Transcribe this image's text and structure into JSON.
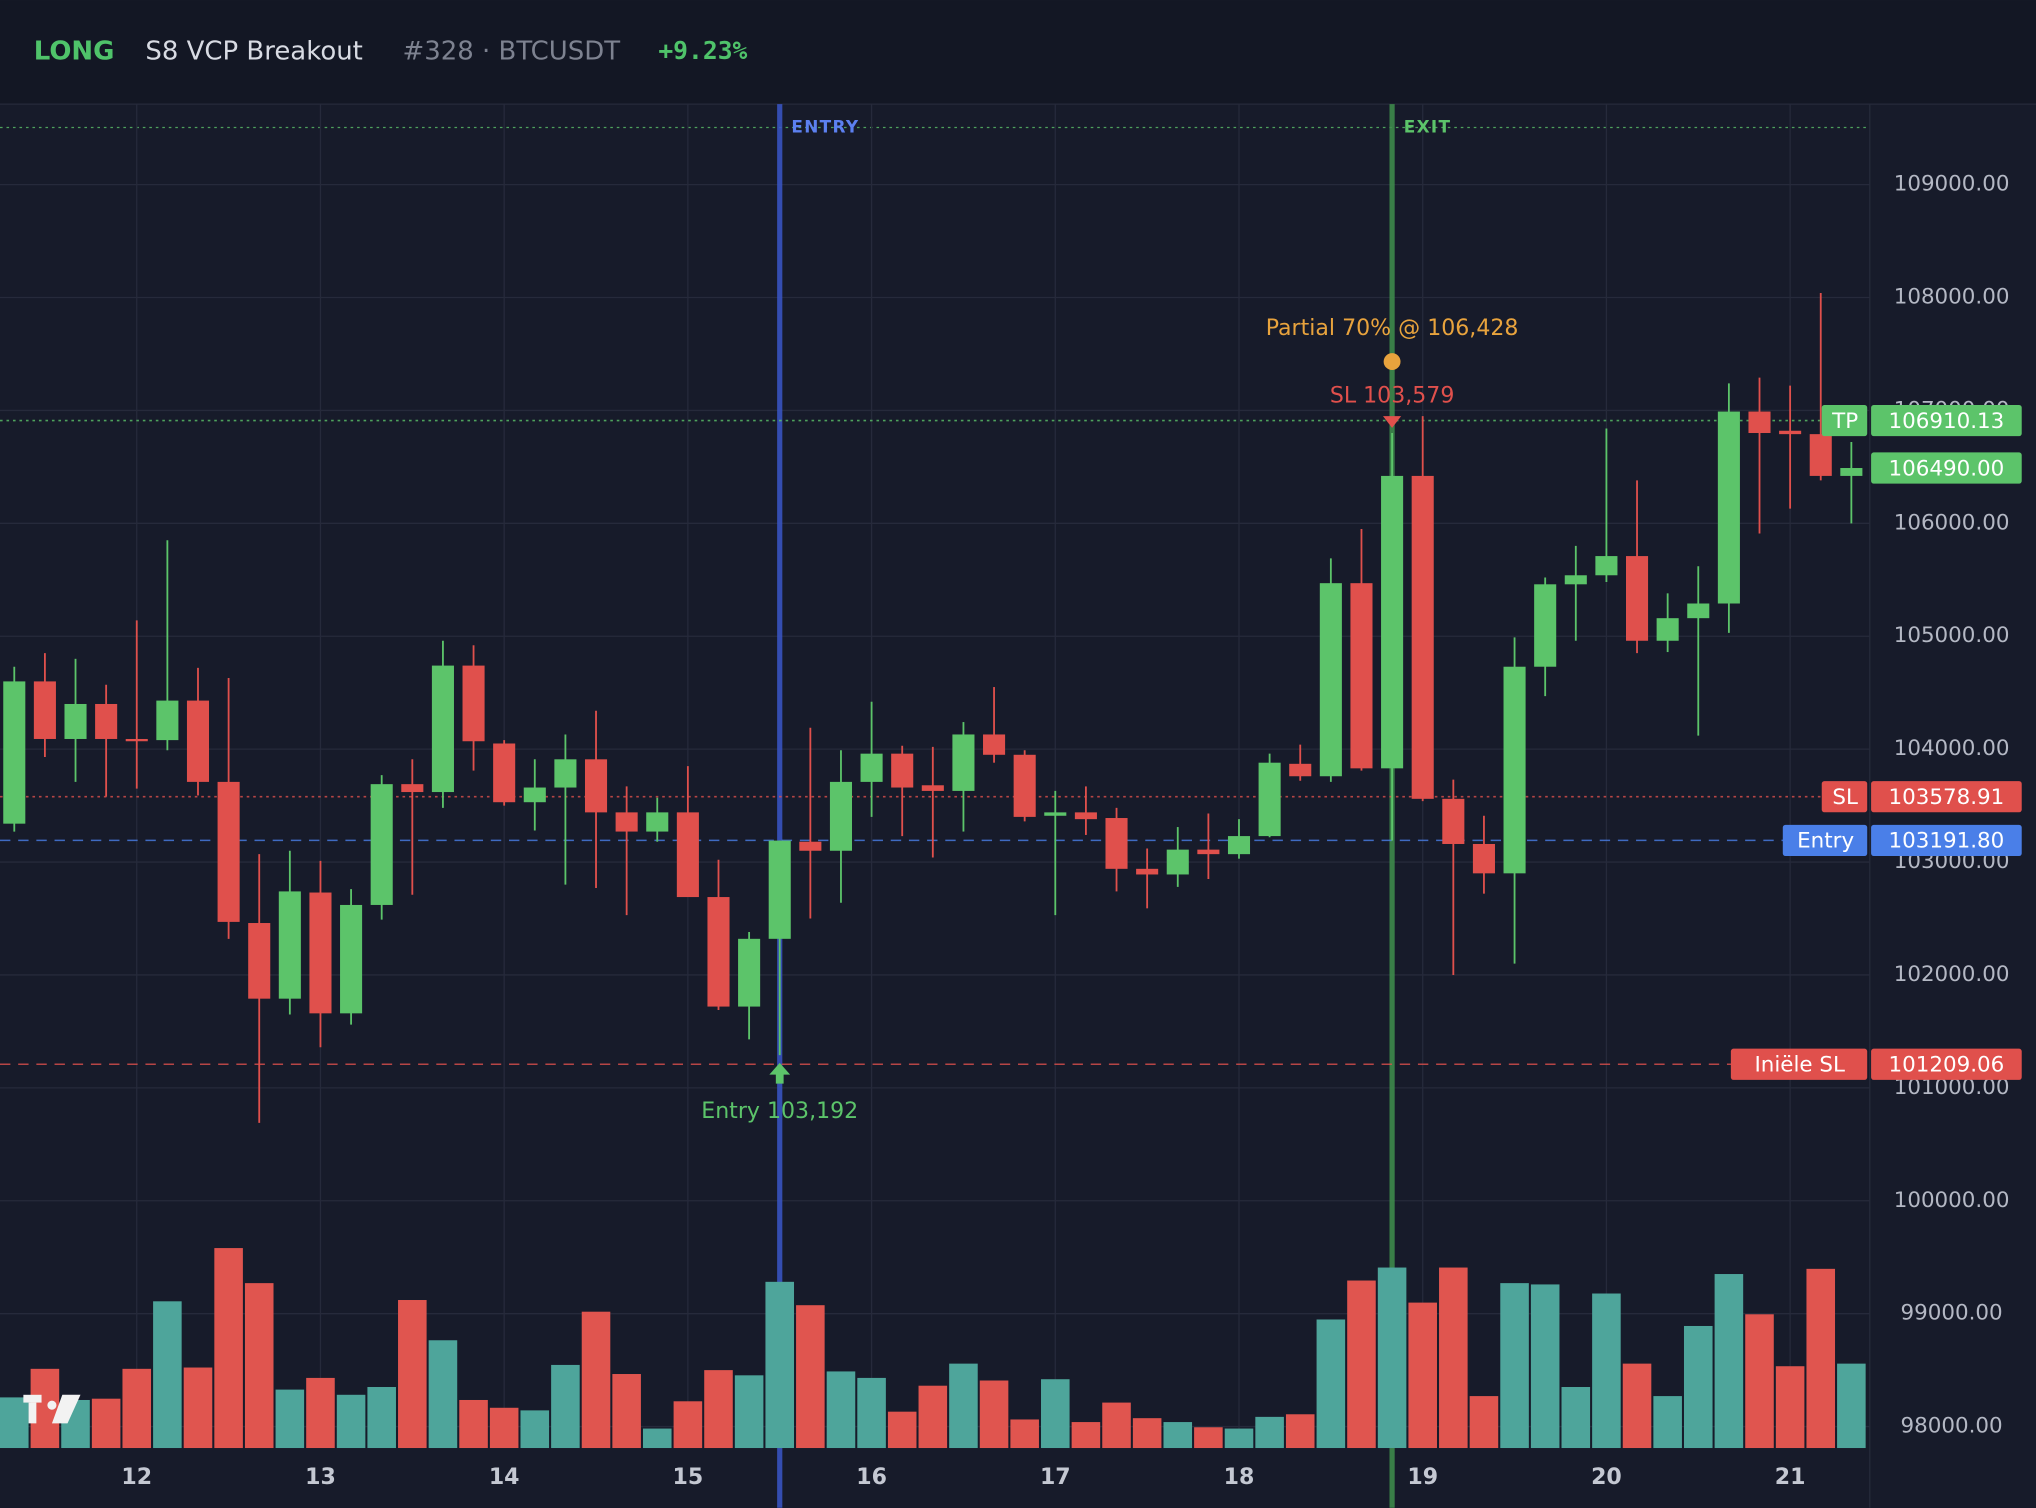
{
  "header": {
    "side": "LONG",
    "strategy": "S8 VCP Breakout",
    "symbol": "#328 · BTCUSDT",
    "pnl": "+9.23%"
  },
  "chart_data": {
    "type": "candlestick",
    "categories": [
      null,
      null,
      null,
      null,
      "12",
      null,
      null,
      null,
      null,
      null,
      "13",
      null,
      null,
      null,
      null,
      null,
      "14",
      null,
      null,
      null,
      null,
      null,
      "15",
      null,
      null,
      null,
      null,
      null,
      "16",
      null,
      null,
      null,
      null,
      null,
      "17",
      null,
      null,
      null,
      null,
      null,
      "18",
      null,
      null,
      null,
      null,
      null,
      "19",
      null,
      null,
      null,
      null,
      null,
      "20",
      null,
      null,
      null,
      null,
      null,
      "21",
      null,
      null
    ],
    "open": [
      103340,
      104600,
      104090,
      104400,
      104090,
      104080,
      104430,
      103710,
      102460,
      101790,
      102730,
      101660,
      102620,
      103690,
      103620,
      104740,
      104050,
      103530,
      103660,
      103910,
      103440,
      103270,
      103440,
      102690,
      101720,
      102320,
      103180,
      103100,
      103710,
      103960,
      103680,
      103630,
      104130,
      103950,
      103410,
      103440,
      103390,
      102940,
      102890,
      103110,
      103070,
      103230,
      103870,
      103760,
      105470,
      103830,
      106420,
      103560,
      103160,
      102900,
      104730,
      105460,
      105540,
      105710,
      104960,
      105160,
      105290,
      106990,
      106820,
      106790,
      106420
    ],
    "high": [
      104730,
      104850,
      104800,
      104570,
      105140,
      105850,
      104720,
      104630,
      103070,
      103100,
      103010,
      102760,
      103770,
      103910,
      104960,
      104920,
      104080,
      103910,
      104130,
      104340,
      103670,
      103570,
      103850,
      103020,
      102380,
      103190,
      104190,
      103990,
      104420,
      104030,
      104020,
      104240,
      104550,
      103990,
      103630,
      103670,
      103480,
      103120,
      103310,
      103430,
      103380,
      103960,
      104040,
      105690,
      105950,
      106800,
      106950,
      103730,
      103410,
      104990,
      105520,
      105800,
      106840,
      106380,
      105380,
      105620,
      107240,
      107290,
      107220,
      108040,
      106720
    ],
    "low": [
      103270,
      103930,
      103710,
      103580,
      103650,
      103990,
      103590,
      102320,
      100690,
      101650,
      101360,
      101560,
      102490,
      102710,
      103480,
      103810,
      103500,
      103280,
      102800,
      102770,
      102530,
      103180,
      102690,
      101690,
      101430,
      101290,
      102500,
      102640,
      103400,
      103230,
      103040,
      103270,
      103880,
      103360,
      102530,
      103240,
      102740,
      102590,
      102780,
      102850,
      103030,
      103220,
      103720,
      103710,
      103810,
      103190,
      103540,
      102000,
      102720,
      102100,
      104470,
      104960,
      105480,
      104850,
      104860,
      104120,
      105030,
      105910,
      106130,
      106380,
      106000
    ],
    "close": [
      104600,
      104090,
      104400,
      104090,
      104070,
      104430,
      103710,
      102470,
      101790,
      102740,
      101660,
      102620,
      103690,
      103620,
      104740,
      104070,
      103530,
      103660,
      103910,
      103440,
      103270,
      103440,
      102690,
      101720,
      102320,
      103190,
      103100,
      103710,
      103960,
      103660,
      103630,
      104130,
      103950,
      103400,
      103440,
      103380,
      102940,
      102890,
      103110,
      103070,
      103230,
      103880,
      103760,
      105470,
      103830,
      106420,
      103560,
      103160,
      102900,
      104730,
      105460,
      105540,
      105710,
      104960,
      105160,
      105290,
      106990,
      106800,
      106790,
      106420,
      106490
    ],
    "volume": [
      39,
      61,
      37,
      38,
      61,
      113,
      62,
      154,
      127,
      45,
      54,
      41,
      47,
      114,
      83,
      37,
      31,
      29,
      64,
      105,
      57,
      15,
      36,
      60,
      56,
      128,
      110,
      59,
      54,
      28,
      48,
      65,
      52,
      22,
      53,
      20,
      35,
      23,
      20,
      16,
      15,
      24,
      26,
      99,
      129,
      139,
      112,
      139,
      40,
      127,
      126,
      47,
      119,
      65,
      40,
      94,
      134,
      103,
      63,
      138,
      65
    ],
    "ylim": [
      97810,
      109713
    ],
    "yticks": [
      {
        "value": 98000,
        "label": "98000.00"
      },
      {
        "value": 99000,
        "label": "99000.00"
      },
      {
        "value": 100000,
        "label": "100000.00"
      },
      {
        "value": 101000,
        "label": "101000.00"
      },
      {
        "value": 102000,
        "label": "102000.00"
      },
      {
        "value": 103000,
        "label": "103000.00"
      },
      {
        "value": 104000,
        "label": "104000.00"
      },
      {
        "value": 105000,
        "label": "105000.00"
      },
      {
        "value": 106000,
        "label": "106000.00"
      },
      {
        "value": 107000,
        "label": "107000.00"
      },
      {
        "value": 108000,
        "label": "108000.00"
      },
      {
        "value": 109000,
        "label": "109000.00"
      }
    ],
    "grid": true,
    "colors": {
      "up": "#5cc46a",
      "down": "#e0504c",
      "up_volume": "#4ea59b",
      "down_volume": "#e0554f"
    },
    "levels": [
      {
        "name": "TP",
        "value": 106910.13,
        "label": "106910.13",
        "color": "#5cc46a",
        "style": "dotted"
      },
      {
        "value": 106490,
        "label": "106490.00",
        "color": "#5cc46a",
        "style": "none"
      },
      {
        "name": "SL",
        "value": 103578.91,
        "label": "103578.91",
        "color": "#e0504c",
        "style": "dotted"
      },
      {
        "name": "Entry",
        "value": 103191.8,
        "label": "103191.80",
        "color": "#4a7fe8",
        "style": "dashed"
      },
      {
        "name": "Iniële SL",
        "value": 101209.06,
        "label": "101209.06",
        "color": "#e0504c",
        "style": "dashed"
      }
    ],
    "vlines": [
      {
        "text": "ENTRY",
        "index": 25,
        "color": "#3a56c8"
      },
      {
        "text": "EXIT",
        "index": 45,
        "color": "#3f8f4c"
      }
    ],
    "markers": [
      {
        "text": "Entry 103,192",
        "index": 25,
        "position": "below",
        "shape": "arrowUp",
        "color": "#5cc46a"
      },
      {
        "text": "SL 103,579",
        "index": 45,
        "position": "above",
        "shape": "arrowDown",
        "color": "#e0504c"
      },
      {
        "text": "Partial 70% @ 106,428",
        "index": 45,
        "position": "above",
        "shape": "circle",
        "color": "#e8a33d"
      }
    ]
  }
}
